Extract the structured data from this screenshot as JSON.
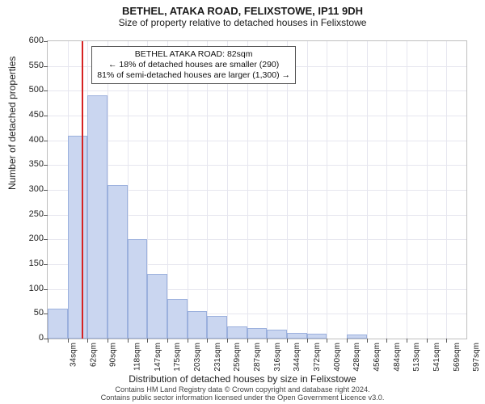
{
  "title": "BETHEL, ATAKA ROAD, FELIXSTOWE, IP11 9DH",
  "subtitle": "Size of property relative to detached houses in Felixstowe",
  "chart": {
    "type": "histogram",
    "ylabel": "Number of detached properties",
    "xlabel": "Distribution of detached houses by size in Felixstowe",
    "ylim": [
      0,
      600
    ],
    "ytick_step": 50,
    "background_color": "#ffffff",
    "grid_color": "#e6e6ef",
    "bar_fill": "#cad6f0",
    "bar_border": "#9bb0dd",
    "marker_color": "#d62222",
    "marker_x_sqm": 82,
    "x_start_sqm": 34,
    "x_bin_width_sqm": 28,
    "x_categories": [
      "34sqm",
      "62sqm",
      "90sqm",
      "118sqm",
      "147sqm",
      "175sqm",
      "203sqm",
      "231sqm",
      "259sqm",
      "287sqm",
      "316sqm",
      "344sqm",
      "372sqm",
      "400sqm",
      "428sqm",
      "456sqm",
      "484sqm",
      "513sqm",
      "541sqm",
      "569sqm",
      "597sqm"
    ],
    "values": [
      60,
      410,
      490,
      310,
      200,
      130,
      80,
      55,
      45,
      25,
      22,
      18,
      12,
      10,
      0,
      8,
      0,
      0,
      0,
      0,
      0
    ],
    "n_bins": 21
  },
  "info_box": {
    "line1": "BETHEL ATAKA ROAD: 82sqm",
    "line2": "← 18% of detached houses are smaller (290)",
    "line3": "81% of semi-detached houses are larger (1,300) →"
  },
  "footer": {
    "line1": "Contains HM Land Registry data © Crown copyright and database right 2024.",
    "line2": "Contains public sector information licensed under the Open Government Licence v3.0."
  }
}
